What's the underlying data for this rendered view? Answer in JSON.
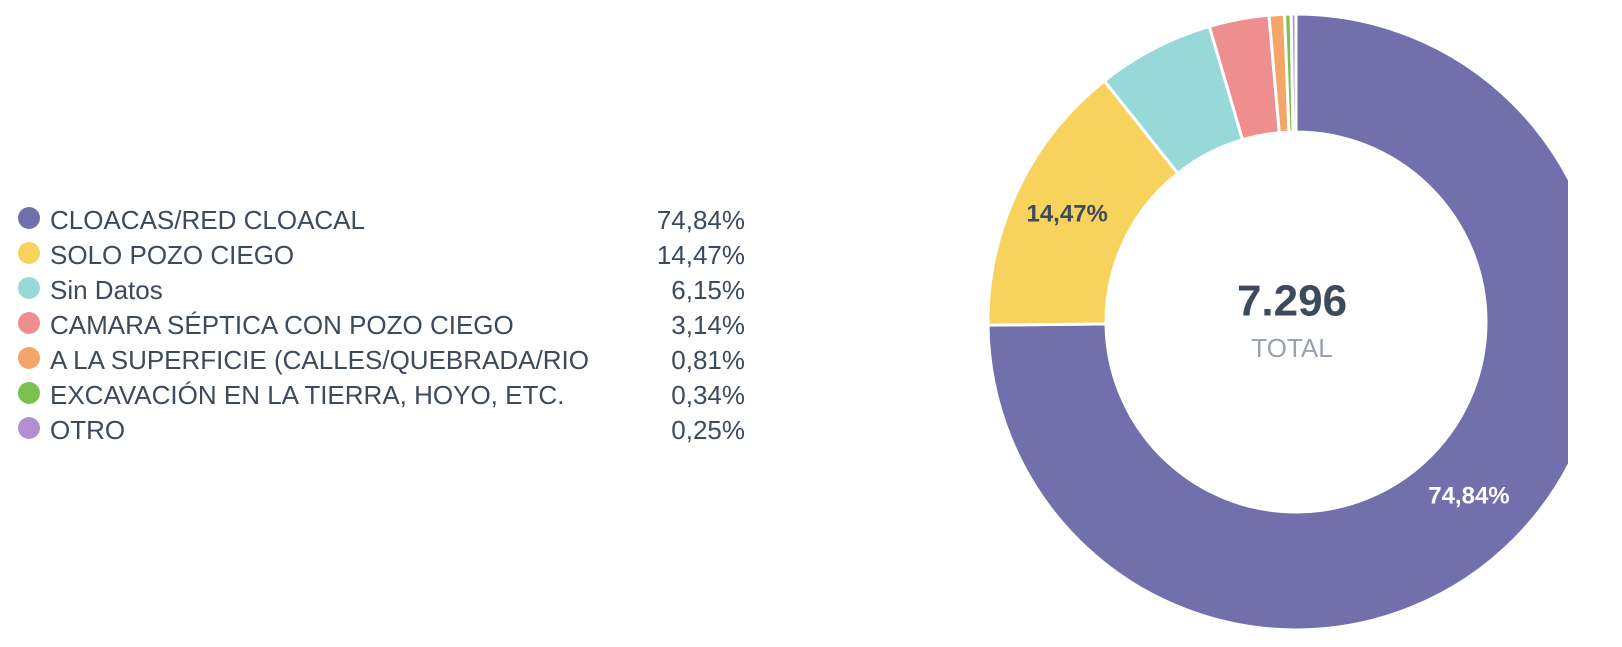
{
  "chart_data": {
    "type": "donut",
    "categories": [
      "CLOACAS/RED CLOACAL",
      "SOLO POZO CIEGO",
      "Sin Datos",
      "CAMARA SÉPTICA CON POZO CIEGO",
      "A LA SUPERFICIE (CALLES/QUEBRADA/RIO",
      "EXCAVACIÓN EN LA TIERRA, HOYO, ETC.",
      "OTRO"
    ],
    "values": [
      74.84,
      14.47,
      6.15,
      3.14,
      0.81,
      0.34,
      0.25
    ],
    "value_labels": [
      "74,84%",
      "14,47%",
      "6,15%",
      "3,14%",
      "0,81%",
      "0,34%",
      "0,25%"
    ],
    "colors": [
      "#7170ad",
      "#f7d35e",
      "#97d9d9",
      "#ef8e8e",
      "#f4a66a",
      "#7cc04f",
      "#b38fd1"
    ],
    "center_value": "7.296",
    "center_label": "TOTAL"
  }
}
